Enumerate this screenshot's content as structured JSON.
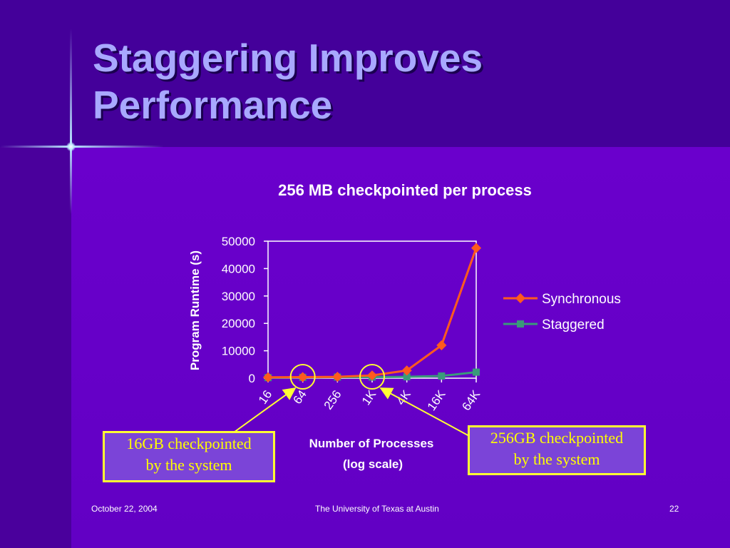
{
  "slide": {
    "title_line1": "Staggering Improves",
    "title_line2": "Performance",
    "footer_date": "October 22, 2004",
    "footer_org": "The University of Texas at Austin",
    "footer_page": "22"
  },
  "colors": {
    "title": "#a8a8ff",
    "synchronous": "#ff5a1e",
    "staggered": "#3a9a7a",
    "callout_border": "#ffff33",
    "callout_text": "#ffff00"
  },
  "callouts": [
    {
      "line1": "16GB checkpointed",
      "line2": "by the system"
    },
    {
      "line1": "256GB checkpointed",
      "line2": "by the system"
    }
  ],
  "chart_data": {
    "type": "line",
    "title": "256 MB checkpointed per process",
    "xlabel_line1": "Number of Processes",
    "xlabel_line2": "(log scale)",
    "ylabel": "Program Runtime (s)",
    "categories": [
      "16",
      "64",
      "256",
      "1K",
      "4K",
      "16K",
      "64K"
    ],
    "ylim": [
      0,
      50000
    ],
    "yticks": [
      "0",
      "10000",
      "20000",
      "30000",
      "40000",
      "50000"
    ],
    "grid": false,
    "legend_position": "right",
    "series": [
      {
        "name": "Synchronous",
        "values": [
          300,
          400,
          500,
          1000,
          2800,
          12000,
          47500
        ]
      },
      {
        "name": "Staggered",
        "values": [
          200,
          300,
          400,
          400,
          500,
          800,
          2200
        ]
      }
    ],
    "highlighted_categories": [
      "64",
      "1K"
    ]
  }
}
